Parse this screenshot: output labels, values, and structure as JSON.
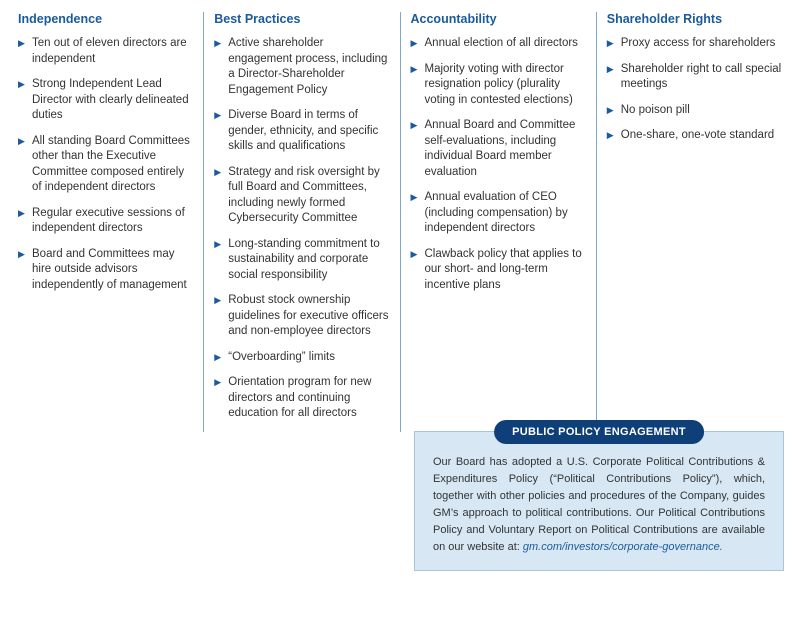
{
  "colors": {
    "heading": "#1a5a9e",
    "bullet": "#1a5a9e",
    "divider": "#7fa8c9",
    "calloutHeaderBg": "#0f3f78",
    "calloutHeaderText": "#ffffff",
    "calloutBg": "#d7e8f4",
    "calloutBorder": "#a8c5dc",
    "bodyText": "#333333",
    "link": "#1a5a9e"
  },
  "columns": [
    {
      "heading": "Independence",
      "items": [
        "Ten out of eleven directors are independent",
        "Strong Independent Lead Director with clearly delineated duties",
        "All standing Board Committees other than the Executive Committee composed entirely of independent directors",
        "Regular executive sessions of independent directors",
        "Board and Committees may hire outside advisors independently of management"
      ]
    },
    {
      "heading": "Best Practices",
      "items": [
        "Active shareholder engagement process, including a Director-Shareholder Engagement Policy",
        "Diverse Board in terms of gender, ethnicity, and specific skills and qualifications",
        "Strategy and risk oversight by full Board and Committees, including newly formed Cybersecurity Committee",
        "Long-standing commitment to sustainability and corporate social responsibility",
        "Robust stock ownership guidelines for executive officers and non-employee directors",
        "“Overboarding” limits",
        "Orientation program for new directors and continuing education for all directors"
      ]
    },
    {
      "heading": "Accountability",
      "items": [
        "Annual election of all directors",
        "Majority voting with director resignation policy (plurality voting in contested elections)",
        "Annual Board and Committee self-evaluations, including individual Board member evaluation",
        "Annual evaluation of CEO (including compensation) by independent directors",
        "Clawback policy that applies to our short- and long-term incentive plans"
      ]
    },
    {
      "heading": "Shareholder Rights",
      "items": [
        "Proxy access for shareholders",
        "Shareholder right to call special meetings",
        "No poison pill",
        "One-share, one-vote standard"
      ]
    }
  ],
  "callout": {
    "title": "PUBLIC POLICY ENGAGEMENT",
    "body": "Our Board has adopted a U.S. Corporate Political Contributions & Expenditures Policy (“Political Contributions Policy”), which, together with other policies and procedures of the Company, guides GM’s approach to political contributions. Our Political Contributions Policy and Voluntary Report on Political Contributions are available on our website at: ",
    "link": "gm.com/investors/corporate-governance."
  }
}
